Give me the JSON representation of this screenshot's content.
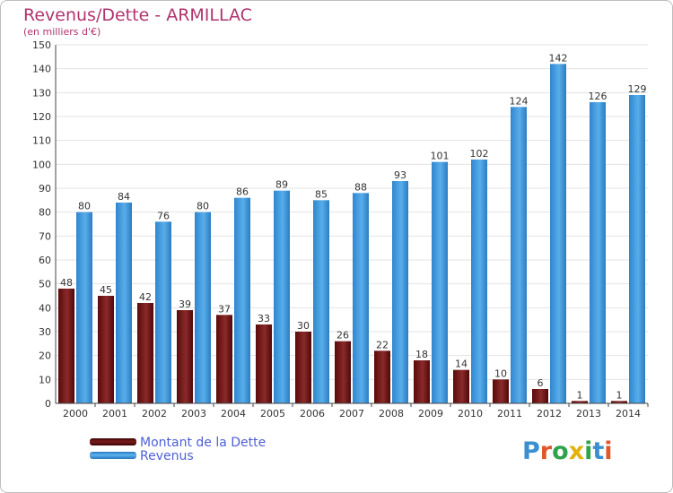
{
  "header": {
    "title": "Revenus/Dette - ARMILLAC",
    "subtitle": "(en milliers d'€)"
  },
  "legend": {
    "items": [
      {
        "label": "Montant de la Dette",
        "color": "#7a1a1a"
      },
      {
        "label": "Revenus",
        "color": "#3f9de0"
      }
    ]
  },
  "logo": {
    "text": "Proxiti",
    "letter_colors": [
      "#3a8fd1",
      "#e0572a",
      "#2fa24b",
      "#e3b20c",
      "#2fa24b",
      "#3a8fd1",
      "#e0572a"
    ]
  },
  "chart_data": {
    "type": "bar",
    "title": "Revenus/Dette - ARMILLAC",
    "subtitle": "(en milliers d'€)",
    "xlabel": "",
    "ylabel": "",
    "ylim": [
      0,
      150
    ],
    "yticks": [
      0,
      10,
      20,
      30,
      40,
      50,
      60,
      70,
      80,
      90,
      100,
      110,
      120,
      130,
      140,
      150
    ],
    "grid": true,
    "legend_position": "bottom-left",
    "categories": [
      "2000",
      "2001",
      "2002",
      "2003",
      "2004",
      "2005",
      "2006",
      "2007",
      "2008",
      "2009",
      "2010",
      "2011",
      "2012",
      "2013",
      "2014"
    ],
    "series": [
      {
        "name": "Montant de la Dette",
        "color": "#7a1a1a",
        "values": [
          48,
          45,
          42,
          39,
          37,
          33,
          30,
          26,
          22,
          18,
          14,
          10,
          6,
          1,
          1
        ]
      },
      {
        "name": "Revenus",
        "color": "#3f9de0",
        "values": [
          80,
          84,
          76,
          80,
          86,
          89,
          85,
          88,
          93,
          101,
          102,
          124,
          142,
          126,
          129
        ]
      }
    ]
  }
}
